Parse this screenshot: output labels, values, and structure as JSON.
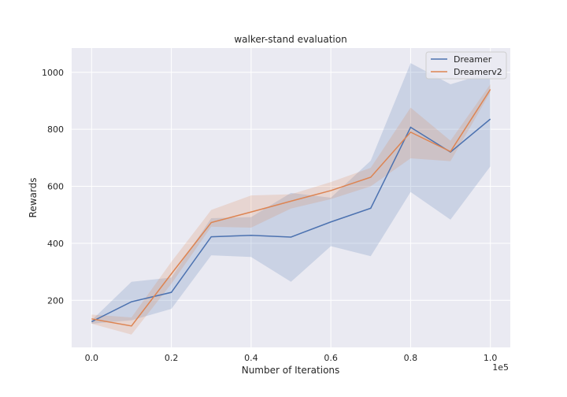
{
  "chart_data": {
    "type": "line",
    "title": "walker-stand evaluation",
    "xlabel": "Number of Iterations",
    "ylabel": "Rewards",
    "x_offset_label": "1e5",
    "x": [
      0.0,
      0.1,
      0.2,
      0.3,
      0.4,
      0.5,
      0.6,
      0.7,
      0.8,
      0.9,
      1.0
    ],
    "xticks": [
      "0.0",
      "0.2",
      "0.4",
      "0.6",
      "0.8",
      "1.0"
    ],
    "yticks": [
      "200",
      "400",
      "600",
      "800",
      "1000"
    ],
    "xlim": [
      -0.05,
      1.05
    ],
    "ylim": [
      35,
      1085
    ],
    "grid": true,
    "legend_position": "top-right",
    "series": [
      {
        "name": "Dreamer",
        "color": "#4c72b0",
        "values": [
          125,
          195,
          228,
          423,
          428,
          422,
          475,
          523,
          807,
          720,
          836
        ],
        "lower": [
          118,
          130,
          170,
          358,
          352,
          265,
          390,
          355,
          580,
          483,
          670
        ],
        "upper": [
          130,
          265,
          280,
          488,
          492,
          577,
          560,
          690,
          1032,
          958,
          1000
        ]
      },
      {
        "name": "Dreamerv2",
        "color": "#dd8452",
        "values": [
          135,
          110,
          293,
          473,
          510,
          548,
          585,
          632,
          790,
          722,
          940
        ],
        "lower": [
          118,
          80,
          258,
          458,
          455,
          522,
          555,
          600,
          698,
          688,
          930
        ],
        "upper": [
          150,
          140,
          335,
          517,
          568,
          572,
          615,
          665,
          876,
          760,
          958
        ]
      }
    ]
  }
}
